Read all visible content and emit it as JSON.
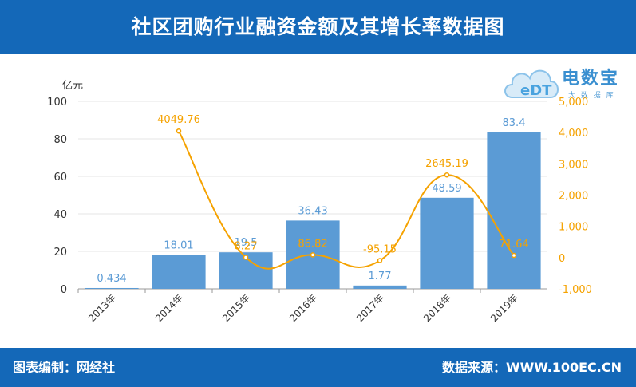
{
  "header": {
    "title": "社区团购行业融资金额及其增长率数据图"
  },
  "footer": {
    "left": "图表编制：网经社",
    "right": "数据来源：WWW.100EC.CN"
  },
  "logo": {
    "text": "电数宝",
    "sub": "大 数 据 库",
    "mark": "eDT"
  },
  "colors": {
    "header_bg": "#1468b8",
    "bar": "#5b9bd5",
    "line": "#f5a200",
    "bar_label": "#5b9bd5",
    "line_label": "#f5a200"
  },
  "chart_data": {
    "type": "bar",
    "categories": [
      "2013年",
      "2014年",
      "2015年",
      "2016年",
      "2017年",
      "2018年",
      "2019年"
    ],
    "bar_series": {
      "values": [
        0.434,
        18.01,
        19.5,
        36.43,
        1.77,
        48.59,
        83.4
      ],
      "labels": [
        "0.434",
        "18.01",
        "19.5",
        "36.43",
        "1.77",
        "48.59",
        "83.4"
      ]
    },
    "line_series": {
      "values": [
        null,
        4049.76,
        8.27,
        86.82,
        -95.15,
        2645.19,
        71.64
      ],
      "labels": [
        "",
        "4049.76",
        "8.27",
        "86.82",
        "-95.15",
        "2645.19",
        "71.64"
      ]
    },
    "y_left": {
      "label": "亿元",
      "ylim": [
        0,
        100
      ],
      "ticks": [
        0,
        20,
        40,
        60,
        80,
        100
      ]
    },
    "y_right": {
      "ylim": [
        -1000,
        5000
      ],
      "ticks": [
        -1000,
        0,
        1000,
        2000,
        3000,
        4000,
        5000
      ],
      "tick_labels": [
        "-1,000",
        "0",
        "1,000",
        "2,000",
        "3,000",
        "4,000",
        "5,000"
      ]
    },
    "grid": true
  }
}
